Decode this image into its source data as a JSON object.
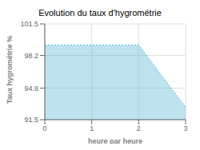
{
  "chart_data": {
    "type": "area",
    "title": "Evolution du taux d'hygrométrie",
    "xlabel": "heure par heure",
    "ylabel": "Taux hygrométrie %",
    "x": [
      0,
      2,
      3
    ],
    "values": [
      99.3,
      99.3,
      92.8
    ],
    "xlim": [
      0,
      3
    ],
    "ylim": [
      91.5,
      101.5
    ],
    "xticks": [
      0,
      1,
      2,
      3
    ],
    "yticks": [
      91.5,
      94.8,
      98.2,
      101.5
    ],
    "color": "#5bb8d4",
    "line_style": "dotted",
    "grid": true
  }
}
